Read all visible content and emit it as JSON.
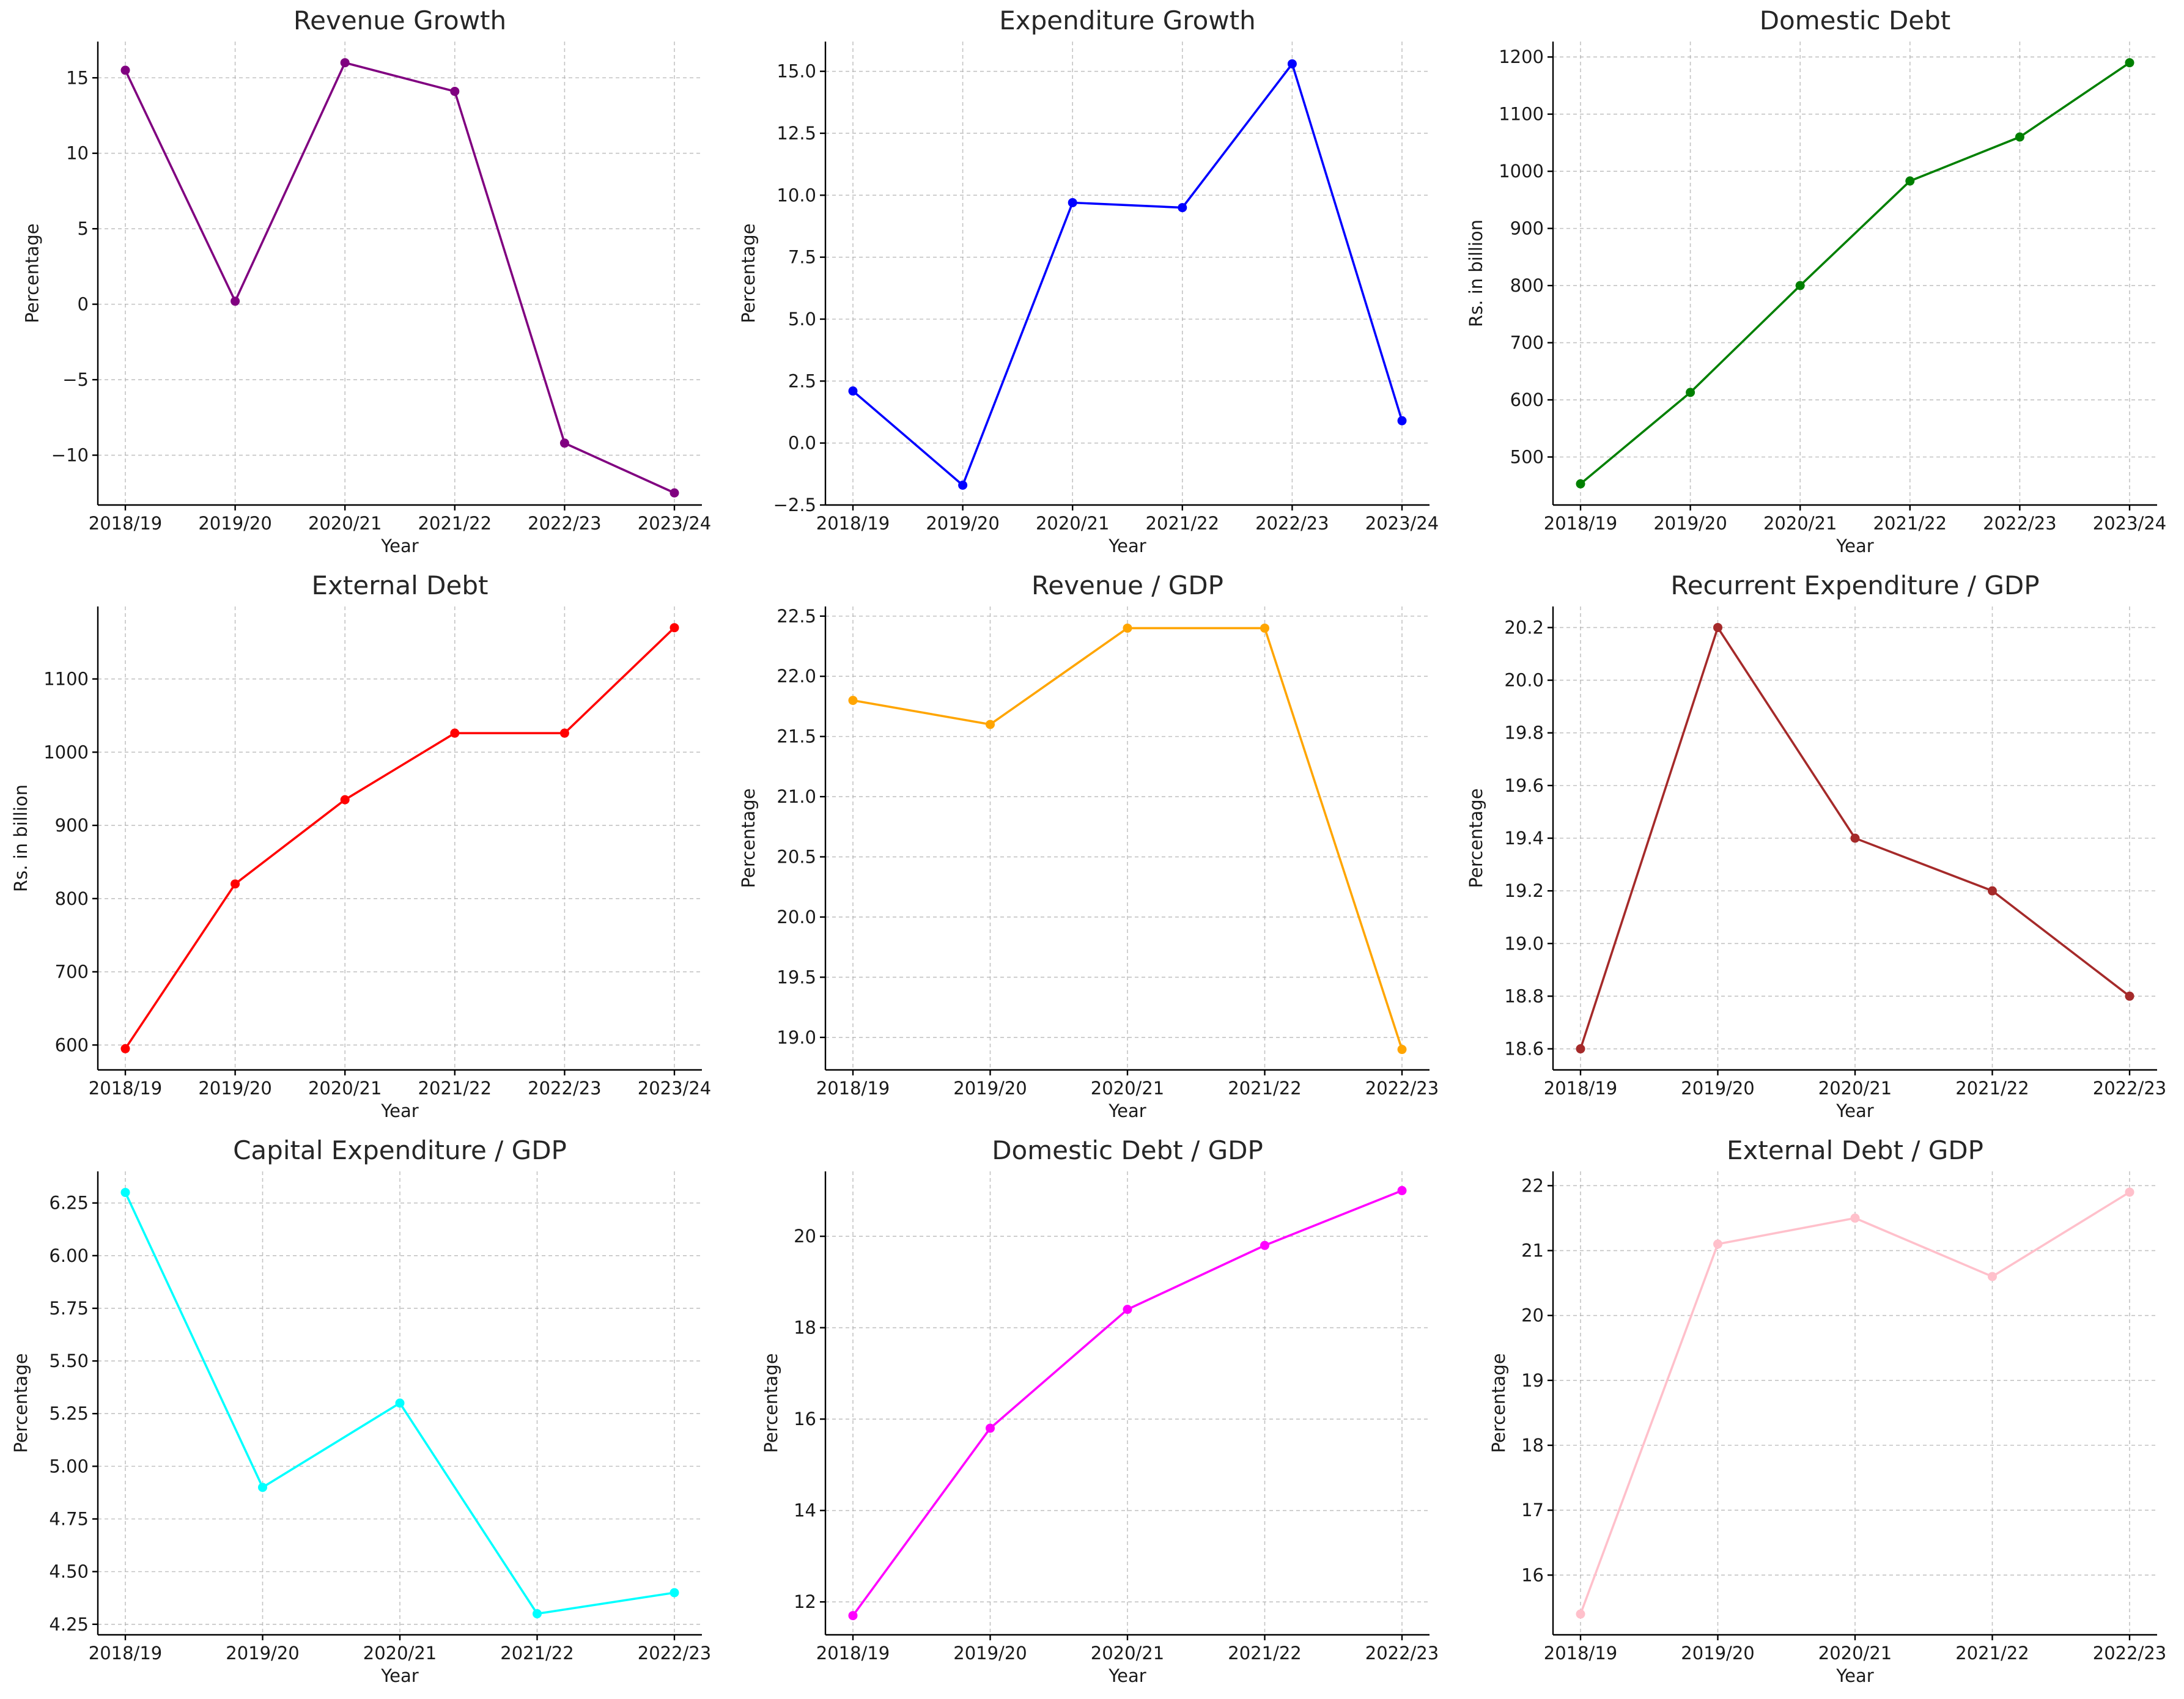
{
  "chart_data": [
    {
      "type": "line",
      "title": "Revenue Growth",
      "xlabel": "Year",
      "ylabel": "Percentage",
      "categories": [
        "2018/19",
        "2019/20",
        "2020/21",
        "2021/22",
        "2022/23",
        "2023/24"
      ],
      "series": [
        {
          "values": [
            15.5,
            0.2,
            16.0,
            14.1,
            -9.2,
            -12.5
          ],
          "color": "#800080"
        }
      ],
      "ylim": [
        -13.3,
        17.4
      ],
      "yticks": [
        -10,
        -5,
        0,
        5,
        10,
        15
      ],
      "ytick_labels": [
        "−10",
        "−5",
        "0",
        "5",
        "10",
        "15"
      ],
      "grid": true
    },
    {
      "type": "line",
      "title": "Expenditure Growth",
      "xlabel": "Year",
      "ylabel": "Percentage",
      "categories": [
        "2018/19",
        "2019/20",
        "2020/21",
        "2021/22",
        "2022/23",
        "2023/24"
      ],
      "series": [
        {
          "values": [
            2.1,
            -1.7,
            9.7,
            9.5,
            15.3,
            0.9
          ],
          "color": "#0000ff"
        }
      ],
      "ylim": [
        -2.5,
        16.2
      ],
      "yticks": [
        -2.5,
        0.0,
        2.5,
        5.0,
        7.5,
        10.0,
        12.5,
        15.0
      ],
      "ytick_labels": [
        "−2.5",
        "0.0",
        "2.5",
        "5.0",
        "7.5",
        "10.0",
        "12.5",
        "15.0"
      ],
      "grid": true
    },
    {
      "type": "line",
      "title": "Domestic Debt",
      "xlabel": "Year",
      "ylabel": "Rs. in billion",
      "categories": [
        "2018/19",
        "2019/20",
        "2020/21",
        "2021/22",
        "2022/23",
        "2023/24"
      ],
      "series": [
        {
          "values": [
            453,
            613,
            800,
            983,
            1060,
            1190
          ],
          "color": "#008000"
        }
      ],
      "ylim": [
        416,
        1227
      ],
      "yticks": [
        500,
        600,
        700,
        800,
        900,
        1000,
        1100,
        1200
      ],
      "ytick_labels": [
        "500",
        "600",
        "700",
        "800",
        "900",
        "1000",
        "1100",
        "1200"
      ],
      "grid": true
    },
    {
      "type": "line",
      "title": "External Debt",
      "xlabel": "Year",
      "ylabel": "Rs. in billion",
      "categories": [
        "2018/19",
        "2019/20",
        "2020/21",
        "2021/22",
        "2022/23",
        "2023/24"
      ],
      "series": [
        {
          "values": [
            595,
            820,
            935,
            1026,
            1026,
            1170
          ],
          "color": "#ff0000"
        }
      ],
      "ylim": [
        566,
        1199
      ],
      "yticks": [
        600,
        700,
        800,
        900,
        1000,
        1100
      ],
      "ytick_labels": [
        "600",
        "700",
        "800",
        "900",
        "1000",
        "1100"
      ],
      "grid": true
    },
    {
      "type": "line",
      "title": "Revenue / GDP",
      "xlabel": "Year",
      "ylabel": "Percentage",
      "categories": [
        "2018/19",
        "2019/20",
        "2020/21",
        "2021/22",
        "2022/23"
      ],
      "series": [
        {
          "values": [
            21.8,
            21.6,
            22.4,
            22.4,
            18.9
          ],
          "color": "#ffa500"
        }
      ],
      "ylim": [
        18.73,
        22.58
      ],
      "yticks": [
        19.0,
        19.5,
        20.0,
        20.5,
        21.0,
        21.5,
        22.0,
        22.5
      ],
      "ytick_labels": [
        "19.0",
        "19.5",
        "20.0",
        "20.5",
        "21.0",
        "21.5",
        "22.0",
        "22.5"
      ],
      "grid": true
    },
    {
      "type": "line",
      "title": "Recurrent Expenditure / GDP",
      "xlabel": "Year",
      "ylabel": "Percentage",
      "categories": [
        "2018/19",
        "2019/20",
        "2020/21",
        "2021/22",
        "2022/23"
      ],
      "series": [
        {
          "values": [
            18.6,
            20.2,
            19.4,
            19.2,
            18.8
          ],
          "color": "#a52a2a"
        }
      ],
      "ylim": [
        18.52,
        20.28
      ],
      "yticks": [
        18.6,
        18.8,
        19.0,
        19.2,
        19.4,
        19.6,
        19.8,
        20.0,
        20.2
      ],
      "ytick_labels": [
        "18.6",
        "18.8",
        "19.0",
        "19.2",
        "19.4",
        "19.6",
        "19.8",
        "20.0",
        "20.2"
      ],
      "grid": true
    },
    {
      "type": "line",
      "title": "Capital Expenditure / GDP",
      "xlabel": "Year",
      "ylabel": "Percentage",
      "categories": [
        "2018/19",
        "2019/20",
        "2020/21",
        "2021/22",
        "2022/23"
      ],
      "series": [
        {
          "values": [
            6.3,
            4.9,
            5.3,
            4.3,
            4.4
          ],
          "color": "#00ffff"
        }
      ],
      "ylim": [
        4.2,
        6.4
      ],
      "yticks": [
        4.25,
        4.5,
        4.75,
        5.0,
        5.25,
        5.5,
        5.75,
        6.0,
        6.25
      ],
      "ytick_labels": [
        "4.25",
        "4.50",
        "4.75",
        "5.00",
        "5.25",
        "5.50",
        "5.75",
        "6.00",
        "6.25"
      ],
      "grid": true
    },
    {
      "type": "line",
      "title": "Domestic Debt / GDP",
      "xlabel": "Year",
      "ylabel": "Percentage",
      "categories": [
        "2018/19",
        "2019/20",
        "2020/21",
        "2021/22",
        "2022/23"
      ],
      "series": [
        {
          "values": [
            11.7,
            15.8,
            18.4,
            19.8,
            21.0
          ],
          "color": "#ff00ff"
        }
      ],
      "ylim": [
        11.28,
        21.42
      ],
      "yticks": [
        12,
        14,
        16,
        18,
        20
      ],
      "ytick_labels": [
        "12",
        "14",
        "16",
        "18",
        "20"
      ],
      "grid": true
    },
    {
      "type": "line",
      "title": "External Debt / GDP",
      "xlabel": "Year",
      "ylabel": "Percentage",
      "categories": [
        "2018/19",
        "2019/20",
        "2020/21",
        "2021/22",
        "2022/23"
      ],
      "series": [
        {
          "values": [
            15.4,
            21.1,
            21.5,
            20.6,
            21.9
          ],
          "color": "#ffc0cb"
        }
      ],
      "ylim": [
        15.08,
        22.22
      ],
      "yticks": [
        16,
        17,
        18,
        19,
        20,
        21,
        22
      ],
      "ytick_labels": [
        "16",
        "17",
        "18",
        "19",
        "20",
        "21",
        "22"
      ],
      "grid": true
    }
  ]
}
